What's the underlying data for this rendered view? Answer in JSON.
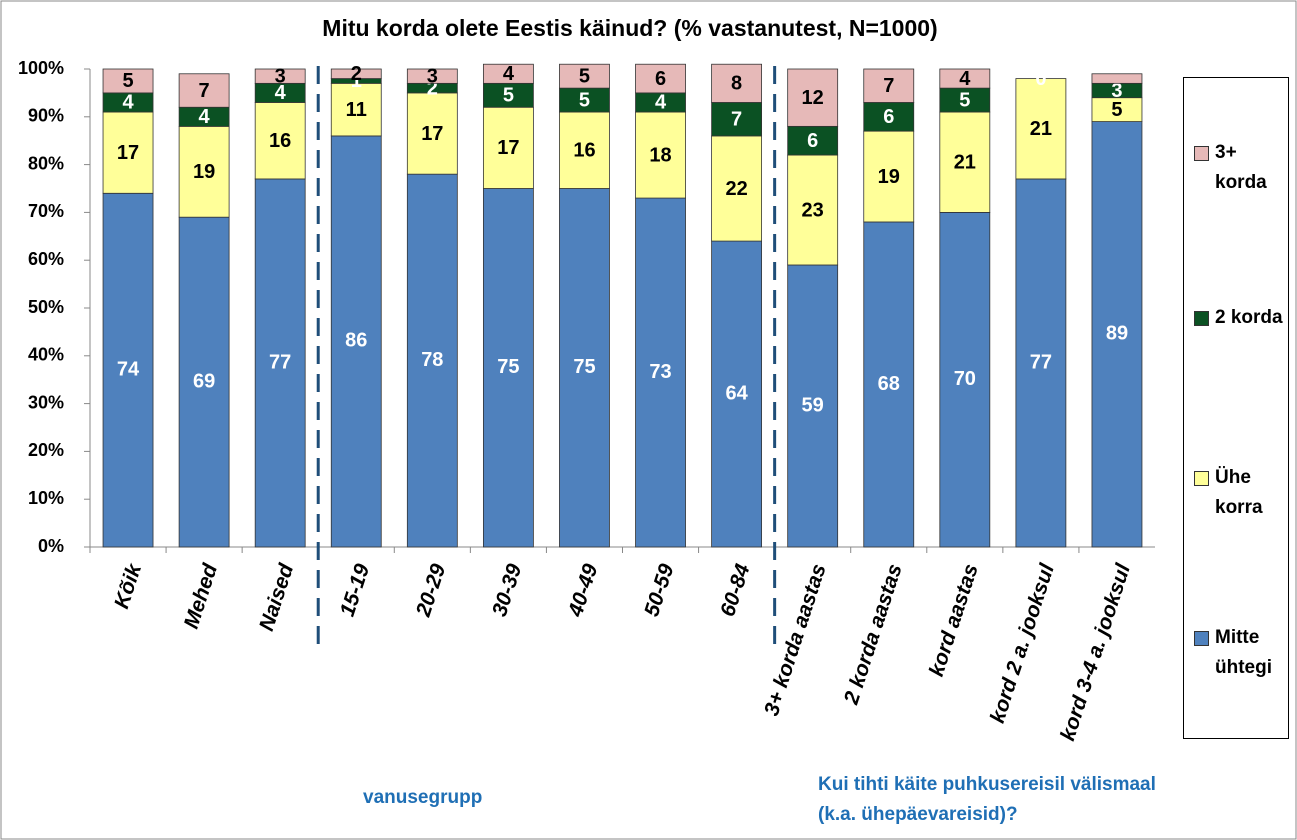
{
  "chart_data": {
    "type": "stacked-bar",
    "title": "Mitu korda olete Eestis käinud? (% vastanutest, N=1000)",
    "categories": [
      "Kõik",
      "Mehed",
      "Naised",
      "15-19",
      "20-29",
      "30-39",
      "40-49",
      "50-59",
      "60-84",
      "3+ korda aastas",
      "2 korda aastas",
      "kord aastas",
      "kord 2 a. jooksul",
      "kord 3-4 a. jooksul"
    ],
    "series": [
      {
        "name": "Mitte ühtegi",
        "color": "#4f81bd",
        "values": [
          74,
          69,
          77,
          86,
          78,
          75,
          75,
          73,
          64,
          59,
          68,
          70,
          77,
          89
        ]
      },
      {
        "name": "Ühe korra",
        "color": "#ffff99",
        "values": [
          17,
          19,
          16,
          11,
          17,
          17,
          16,
          18,
          22,
          23,
          19,
          21,
          21,
          5
        ]
      },
      {
        "name": "2 korda",
        "color": "#0b5123",
        "values": [
          4,
          4,
          4,
          1,
          2,
          5,
          5,
          4,
          7,
          6,
          6,
          5,
          0,
          3
        ]
      },
      {
        "name": "3+ korda",
        "color": "#e6b9b8",
        "values": [
          5,
          7,
          3,
          2,
          3,
          4,
          5,
          6,
          8,
          12,
          7,
          4,
          0,
          2
        ],
        "value_labels": [
          "5",
          "7",
          "3",
          "2",
          "3",
          "4",
          "5",
          "6",
          "8",
          "12",
          "7",
          "4",
          null,
          null
        ]
      }
    ],
    "ylim": [
      0,
      100
    ],
    "yticks": [
      {
        "value": 0,
        "label": "0%"
      },
      {
        "value": 10,
        "label": "10%"
      },
      {
        "value": 20,
        "label": "20%"
      },
      {
        "value": 30,
        "label": "30%"
      },
      {
        "value": 40,
        "label": "40%"
      },
      {
        "value": 50,
        "label": "50%"
      },
      {
        "value": 60,
        "label": "60%"
      },
      {
        "value": 70,
        "label": "70%"
      },
      {
        "value": 80,
        "label": "80%"
      },
      {
        "value": 90,
        "label": "90%"
      },
      {
        "value": 100,
        "label": "100%"
      }
    ],
    "legend": "right",
    "annotations": [
      "vanusegrupp",
      "Kui tihti käite puhkusereisil välismaal (k.a. ühepäevareisid)?"
    ]
  }
}
